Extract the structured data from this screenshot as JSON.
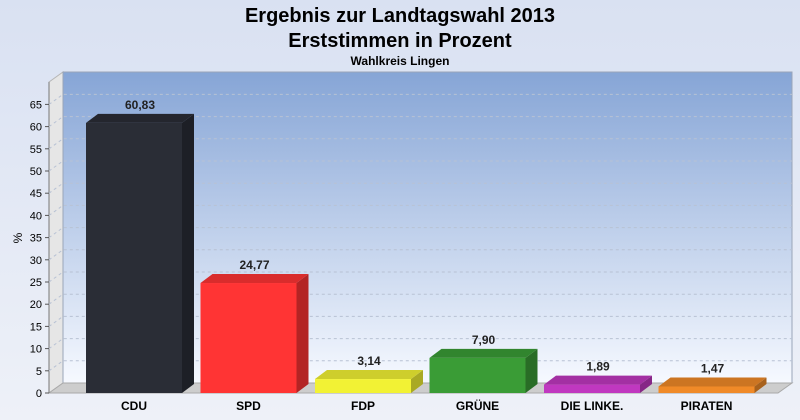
{
  "chart_data": {
    "type": "bar",
    "title": "Ergebnis zur Landtagswahl 2013",
    "subtitle": "Erststimmen in Prozent",
    "note": "Wahlkreis Lingen",
    "ylabel": "%",
    "xlabel": "",
    "ylim": [
      0,
      68
    ],
    "yticks": [
      "0",
      "5",
      "10",
      "15",
      "20",
      "25",
      "30",
      "35",
      "40",
      "45",
      "50",
      "55",
      "60",
      "65"
    ],
    "grid": true,
    "categories": [
      "CDU",
      "SPD",
      "FDP",
      "GRÜNE",
      "DIE LINKE.",
      "PIRATEN"
    ],
    "values": [
      60.83,
      24.77,
      3.14,
      7.9,
      1.89,
      1.47
    ],
    "value_labels": [
      "60,83",
      "24,77",
      "3,14",
      "7,90",
      "1,89",
      "1,47"
    ],
    "colors": [
      "#2a2d36",
      "#ff3434",
      "#f2f234",
      "#3a9c36",
      "#c038c0",
      "#f08a28"
    ]
  }
}
